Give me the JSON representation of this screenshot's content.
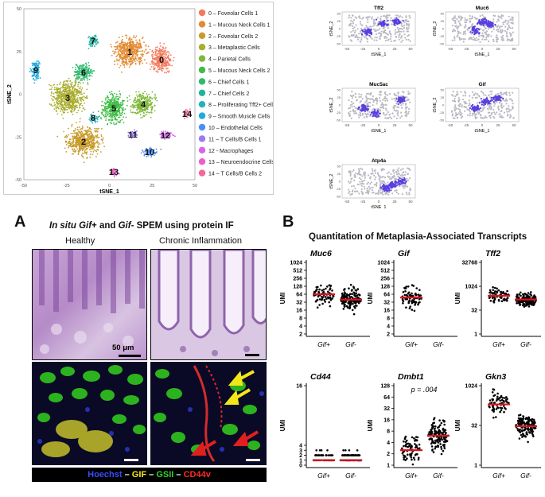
{
  "tsne_main": {
    "xlabel": "tSNE_1",
    "ylabel": "tSNE_2",
    "x_ticks": [
      "-50",
      "-25",
      "0",
      "25",
      "50"
    ],
    "y_ticks": [
      "50",
      "25",
      "0",
      "-25",
      "-50"
    ],
    "clusters": [
      {
        "id": "0",
        "label": "0 – Foveolar Cells 1",
        "color": "#f47a5e"
      },
      {
        "id": "1",
        "label": "1 – Mucous Neck Cells 1",
        "color": "#e28a32"
      },
      {
        "id": "2",
        "label": "2 – Foveolar Cells 2",
        "color": "#c89b2a"
      },
      {
        "id": "3",
        "label": "3 – Metaplastic Cells",
        "color": "#a8ad2c"
      },
      {
        "id": "4",
        "label": "4 – Parietal Cells",
        "color": "#7fb83a"
      },
      {
        "id": "5",
        "label": "5 – Mucous Neck Cells 2",
        "color": "#3fbc45"
      },
      {
        "id": "6",
        "label": "6 – Chief Cells 1",
        "color": "#2fba6e"
      },
      {
        "id": "7",
        "label": "7 – Chief Cells 2",
        "color": "#22b49a"
      },
      {
        "id": "8",
        "label": "8 – Proliferating Tff2+ Cells",
        "color": "#21b2be"
      },
      {
        "id": "9",
        "label": "9 – Smooth Muscle Cells",
        "color": "#1fa9dc"
      },
      {
        "id": "10",
        "label": "10 – Endothelial Cells",
        "color": "#4b8ff0"
      },
      {
        "id": "11",
        "label": "11 – T Cells/B Cells 1",
        "color": "#9b7af2"
      },
      {
        "id": "12",
        "label": "12 - Macrophages",
        "color": "#d565ea"
      },
      {
        "id": "13",
        "label": "13 – Neuroendocrine Cells",
        "color": "#ee5fc6"
      },
      {
        "id": "14",
        "label": "14 – T Cells/B Cells 2",
        "color": "#f4679a"
      }
    ]
  },
  "feature_plots": {
    "xlabel": "tSNE_1",
    "ylabel": "tSNE_2",
    "x_ticks": [
      "-50",
      "-25",
      "0",
      "25",
      "50"
    ],
    "y_ticks": [
      "50",
      "25",
      "0",
      "-25",
      "-50"
    ],
    "genes": [
      "Tff2",
      "Muc6",
      "Muc5ac",
      "Gif",
      "Atp4a"
    ]
  },
  "panelA": {
    "letter": "A",
    "title_pre": "In situ ",
    "title_gene": "Gif",
    "title_mid": "+ and ",
    "title_gene2": "Gif-",
    "title_post": " SPEM using protein IF",
    "healthy": "Healthy",
    "chronic": "Chronic Inflammation",
    "scalebar": "50 μm",
    "legend": {
      "hoechst": "Hoechst",
      "gif": "GIF",
      "gsii": "GSII",
      "cd44v": "CD44v",
      "sep": " – "
    }
  },
  "panelB": {
    "letter": "B",
    "title": "Quantitation of Metaplasia-Associated Transcripts",
    "ylabel": "UMI",
    "groups": [
      "Gif+",
      "Gif-"
    ],
    "plots": [
      {
        "gene": "Muc6",
        "ticks": [
          "1024",
          "512",
          "256",
          "128",
          "64",
          "32",
          "16",
          "8",
          "4",
          "2"
        ]
      },
      {
        "gene": "Gif",
        "ticks": [
          "1024",
          "512",
          "256",
          "128",
          "64",
          "32",
          "16",
          "8",
          "4",
          "2"
        ]
      },
      {
        "gene": "Tff2",
        "ticks": [
          "32768",
          "1024",
          "32",
          "1"
        ]
      },
      {
        "gene": "Cd44",
        "ticks": [
          "16",
          "4",
          "3",
          "2",
          "1",
          "0"
        ]
      },
      {
        "gene": "Dmbt1",
        "ticks": [
          "128",
          "64",
          "32",
          "16",
          "8",
          "4",
          "2",
          "1"
        ],
        "pvalue": "p = .004"
      },
      {
        "gene": "Gkn3",
        "ticks": [
          "1024",
          "32",
          "1"
        ]
      }
    ]
  },
  "chart_data": [
    {
      "type": "scatter",
      "title": "Muc6",
      "xlabel": "",
      "ylabel": "UMI",
      "categories": [
        "Gif+",
        "Gif-"
      ],
      "scale": "log2",
      "ylim": [
        2,
        1024
      ],
      "means": [
        64,
        40
      ]
    },
    {
      "type": "scatter",
      "title": "Gif",
      "xlabel": "",
      "ylabel": "UMI",
      "categories": [
        "Gif+",
        "Gif-"
      ],
      "scale": "log2",
      "ylim": [
        2,
        1024
      ],
      "means": [
        48,
        0
      ]
    },
    {
      "type": "scatter",
      "title": "Tff2",
      "xlabel": "",
      "ylabel": "UMI",
      "categories": [
        "Gif+",
        "Gif-"
      ],
      "scale": "log",
      "ylim": [
        1,
        32768
      ],
      "means": [
        256,
        150
      ]
    },
    {
      "type": "scatter",
      "title": "Cd44",
      "xlabel": "",
      "ylabel": "UMI",
      "categories": [
        "Gif+",
        "Gif-"
      ],
      "ylim": [
        0,
        16
      ],
      "means": [
        1,
        1
      ]
    },
    {
      "type": "scatter",
      "title": "Dmbt1",
      "xlabel": "",
      "ylabel": "UMI",
      "categories": [
        "Gif+",
        "Gif-"
      ],
      "scale": "log2",
      "ylim": [
        1,
        128
      ],
      "means": [
        2.5,
        6
      ],
      "annotation": "p = .004"
    },
    {
      "type": "scatter",
      "title": "Gkn3",
      "xlabel": "",
      "ylabel": "UMI",
      "categories": [
        "Gif+",
        "Gif-"
      ],
      "scale": "log",
      "ylim": [
        1,
        1024
      ],
      "means": [
        200,
        30
      ]
    }
  ]
}
